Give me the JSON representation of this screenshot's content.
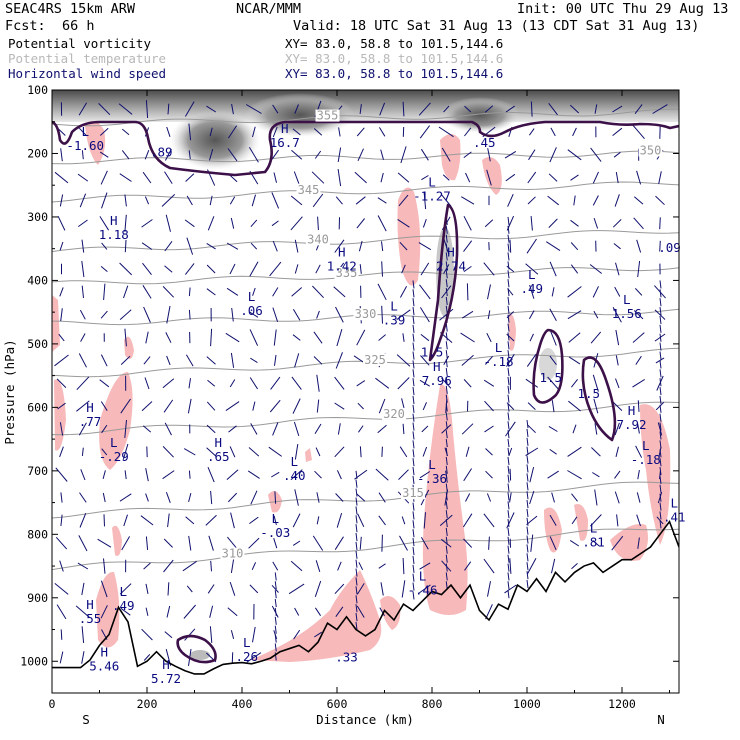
{
  "header": {
    "left_top": "SEAC4RS 15km ARW",
    "center_top": "NCAR/MMM",
    "right_top": "Init: 00 UTC Thu 29 Aug 13",
    "fcst_label": "Fcst:",
    "fcst_value": "66 h",
    "valid": "Valid: 18 UTC Sat 31 Aug 13 (13 CDT Sat 31 Aug 13)"
  },
  "fields": [
    {
      "name": "Potential vorticity",
      "xy": "XY=  83.0, 58.8 to 101.5,144.6",
      "color": "#000000"
    },
    {
      "name": "Potential temperature",
      "xy": "XY=  83.0, 58.8 to 101.5,144.6",
      "color": "#b8b8b8"
    },
    {
      "name": "Horizontal wind speed",
      "xy": "XY=  83.0, 58.8 to 101.5,144.6",
      "color": "#10106e"
    }
  ],
  "chart_data": {
    "type": "cross-section",
    "xlabel": "Distance (km)",
    "ylabel": "Pressure (hPa)",
    "xlim": [
      0,
      1320
    ],
    "ylim": [
      1050,
      100
    ],
    "x_ticks": [
      0,
      200,
      400,
      600,
      800,
      1000,
      1200
    ],
    "y_ticks": [
      100,
      200,
      300,
      400,
      500,
      600,
      700,
      800,
      900,
      1000
    ],
    "end_labels": {
      "left": "S",
      "right": "N"
    },
    "colors": {
      "pv_contour": "#3c1048",
      "shading": "#f7b9b9",
      "theta": "#9a9a9a",
      "wind": "#10106e",
      "terrain": "#000000"
    },
    "theta_contours": [
      {
        "label": "355",
        "x": 580,
        "p": 145
      },
      {
        "label": "350",
        "x": 1260,
        "p": 200
      },
      {
        "label": "345",
        "x": 540,
        "p": 262
      },
      {
        "label": "340",
        "x": 560,
        "p": 340
      },
      {
        "label": "335",
        "x": 620,
        "p": 393
      },
      {
        "label": "330",
        "x": 660,
        "p": 458
      },
      {
        "label": "325",
        "x": 680,
        "p": 530
      },
      {
        "label": "320",
        "x": 720,
        "p": 615
      },
      {
        "label": "315",
        "x": 760,
        "p": 740
      },
      {
        "label": "310",
        "x": 380,
        "p": 835
      }
    ],
    "extrema": [
      {
        "type": "L",
        "value": "-1.60",
        "x": 70,
        "p": 185
      },
      {
        "type": "H",
        "value": "16.7",
        "x": 490,
        "p": 180
      },
      {
        "type": "H",
        "value": "1.18",
        "x": 130,
        "p": 325
      },
      {
        "type": "L",
        "value": "-1.27",
        "x": 800,
        "p": 265
      },
      {
        "type": "H",
        "value": "1.42",
        "x": 610,
        "p": 375
      },
      {
        "type": "H",
        "value": "2.74",
        "x": 840,
        "p": 375
      },
      {
        "type": "L",
        "value": ".49",
        "x": 1010,
        "p": 410
      },
      {
        "type": "L",
        "value": ".06",
        "x": 420,
        "p": 445
      },
      {
        "type": "L",
        "value": ".39",
        "x": 720,
        "p": 460
      },
      {
        "type": "L",
        "value": "1.56",
        "x": 1210,
        "p": 450
      },
      {
        "type": "L",
        "value": "-.18",
        "x": 940,
        "p": 525
      },
      {
        "type": "H",
        "value": "7.96",
        "x": 810,
        "p": 555
      },
      {
        "type": "H",
        "value": ".77",
        "x": 80,
        "p": 620
      },
      {
        "type": "L",
        "value": "-.29",
        "x": 130,
        "p": 675
      },
      {
        "type": "H",
        "value": ".65",
        "x": 350,
        "p": 675
      },
      {
        "type": "L",
        "value": ".40",
        "x": 510,
        "p": 705
      },
      {
        "type": "H",
        "value": "7.92",
        "x": 1220,
        "p": 625
      },
      {
        "type": "L",
        "value": "-.18",
        "x": 1250,
        "p": 680
      },
      {
        "type": "L",
        "value": "-.36",
        "x": 800,
        "p": 710
      },
      {
        "type": "L",
        "value": ".41",
        "x": 1310,
        "p": 770
      },
      {
        "type": "L",
        "value": "-.03",
        "x": 470,
        "p": 795
      },
      {
        "type": "L",
        "value": ".81",
        "x": 1140,
        "p": 810
      },
      {
        "type": "L",
        "value": "-.46",
        "x": 780,
        "p": 885
      },
      {
        "type": "L",
        "value": ".49",
        "x": 150,
        "p": 910
      },
      {
        "type": "H",
        "value": ".55",
        "x": 80,
        "p": 930
      },
      {
        "type": "L",
        "value": ".26",
        "x": 410,
        "p": 990
      },
      {
        "type": "H",
        "value": "5.46",
        "x": 110,
        "p": 1005
      },
      {
        "type": "H",
        "value": "5.72",
        "x": 240,
        "p": 1025
      }
    ],
    "pv_labels": [
      {
        "label": ".89",
        "x": 230,
        "p": 205
      },
      {
        "label": ".45",
        "x": 910,
        "p": 190
      },
      {
        "label": "1.5",
        "x": 800,
        "p": 520
      },
      {
        "label": "1.5",
        "x": 1050,
        "p": 560
      },
      {
        "label": "1.5",
        "x": 1130,
        "p": 585
      },
      {
        "label": ".09",
        "x": 1300,
        "p": 355
      },
      {
        "label": ".33",
        "x": 620,
        "p": 1000
      }
    ],
    "terrain": {
      "x": [
        0,
        20,
        40,
        60,
        80,
        100,
        120,
        140,
        160,
        180,
        200,
        220,
        240,
        260,
        280,
        300,
        320,
        340,
        360,
        380,
        400,
        420,
        440,
        460,
        480,
        500,
        520,
        540,
        560,
        580,
        600,
        620,
        640,
        660,
        680,
        700,
        720,
        740,
        760,
        780,
        800,
        820,
        840,
        860,
        880,
        900,
        920,
        940,
        960,
        980,
        1000,
        1020,
        1040,
        1060,
        1080,
        1100,
        1120,
        1140,
        1160,
        1180,
        1200,
        1220,
        1240,
        1260,
        1280,
        1300,
        1320
      ],
      "p": [
        1010,
        1010,
        1010,
        1010,
        998,
        975,
        958,
        915,
        938,
        1008,
        1000,
        985,
        1000,
        1008,
        1015,
        1020,
        1020,
        1012,
        1005,
        1003,
        1002,
        1004,
        1000,
        995,
        985,
        980,
        975,
        985,
        970,
        940,
        950,
        930,
        950,
        960,
        950,
        920,
        935,
        910,
        920,
        905,
        890,
        895,
        880,
        900,
        880,
        920,
        935,
        910,
        918,
        880,
        890,
        870,
        890,
        860,
        875,
        860,
        850,
        845,
        860,
        850,
        840,
        840,
        830,
        820,
        800,
        780,
        820
      ]
    }
  }
}
